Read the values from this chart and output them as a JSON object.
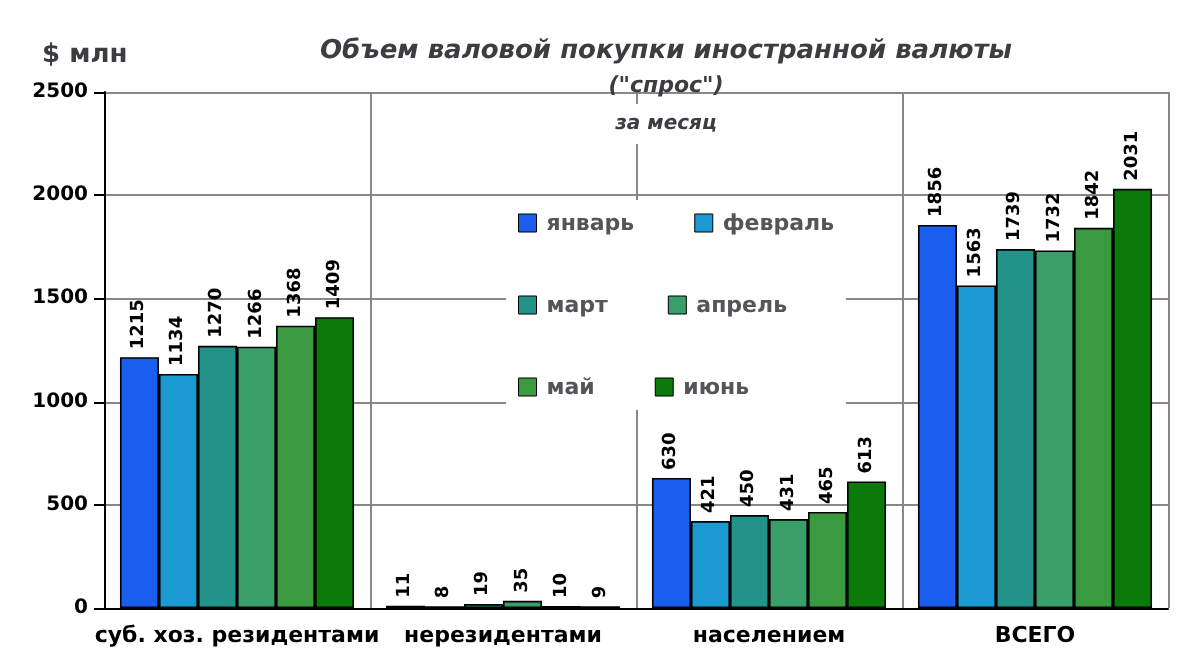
{
  "chart_data": {
    "type": "bar",
    "title": "Объем валовой покупки иностранной валюты",
    "subtitle": "(\"спрос\")\nза месяц",
    "ylabel": "$ млн",
    "categories": [
      "суб. хоз. резидентами",
      "нерезидентами",
      "населением",
      "ВСЕГО"
    ],
    "series": [
      {
        "name": "январь",
        "color": "#1a5ef0",
        "values": [
          1215,
          11,
          630,
          1856
        ]
      },
      {
        "name": "февраль",
        "color": "#1a9ad0",
        "values": [
          1134,
          8,
          421,
          1563
        ]
      },
      {
        "name": "март",
        "color": "#23938a",
        "values": [
          1270,
          19,
          450,
          1739
        ]
      },
      {
        "name": "апрель",
        "color": "#3a9e68",
        "values": [
          1266,
          35,
          431,
          1732
        ]
      },
      {
        "name": "май",
        "color": "#3a9a40",
        "values": [
          1368,
          10,
          465,
          1842
        ]
      },
      {
        "name": "июнь",
        "color": "#0a7a0a",
        "values": [
          1409,
          9,
          613,
          2031
        ]
      }
    ],
    "ylim": [
      0,
      2500
    ],
    "yticks": [
      0,
      500,
      1000,
      1500,
      2000,
      2500
    ],
    "grid": true,
    "legend": "top",
    "data_labels": true
  }
}
